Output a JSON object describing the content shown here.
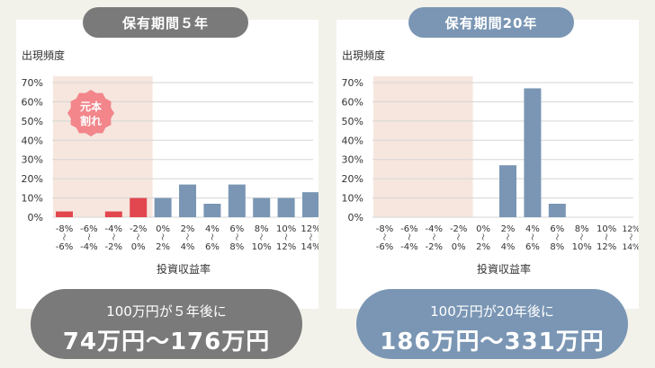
{
  "colors": {
    "gray": "#7a7a7a",
    "blue": "#7a96b4",
    "red": "#e2474f",
    "shade": "#f6e6de",
    "badge": "#f2868b",
    "grid": "#d5d5d5",
    "text": "#333333"
  },
  "left": {
    "title": "保有期間５年",
    "summary_line1": "100万円が５年後に",
    "summary_line2": "74万円〜176万円",
    "badge_line1": "元本",
    "badge_line2": "割れ"
  },
  "right": {
    "title": "保有期間20年",
    "summary_line1": "100万円が20年後に",
    "summary_line2": "186万円〜331万円"
  },
  "chart_data": [
    {
      "type": "bar",
      "ylabel": "出現頻度",
      "xlabel": "投資収益率",
      "ylim": [
        0,
        70
      ],
      "yticks": [
        "0%",
        "10%",
        "20%",
        "30%",
        "40%",
        "50%",
        "60%",
        "70%"
      ],
      "categories": [
        [
          "-8%",
          "-6%"
        ],
        [
          "-6%",
          "-4%"
        ],
        [
          "-4%",
          "-2%"
        ],
        [
          "-2%",
          "0%"
        ],
        [
          "0%",
          "2%"
        ],
        [
          "2%",
          "4%"
        ],
        [
          "4%",
          "6%"
        ],
        [
          "6%",
          "8%"
        ],
        [
          "8%",
          "10%"
        ],
        [
          "10%",
          "12%"
        ],
        [
          "12%",
          "14%"
        ]
      ],
      "values": [
        3,
        0,
        3,
        10,
        10,
        17,
        7,
        17,
        10,
        10,
        13
      ],
      "loss_categories": 4
    },
    {
      "type": "bar",
      "ylabel": "出現頻度",
      "xlabel": "投資収益率",
      "ylim": [
        0,
        70
      ],
      "yticks": [
        "0%",
        "10%",
        "20%",
        "30%",
        "40%",
        "50%",
        "60%",
        "70%"
      ],
      "categories": [
        [
          "-8%",
          "-6%"
        ],
        [
          "-6%",
          "-4%"
        ],
        [
          "-4%",
          "-2%"
        ],
        [
          "-2%",
          "0%"
        ],
        [
          "0%",
          "2%"
        ],
        [
          "2%",
          "4%"
        ],
        [
          "4%",
          "6%"
        ],
        [
          "6%",
          "8%"
        ],
        [
          "8%",
          "10%"
        ],
        [
          "10%",
          "12%"
        ],
        [
          "12%",
          "14%"
        ]
      ],
      "values": [
        0,
        0,
        0,
        0,
        0,
        27,
        67,
        7,
        0,
        0,
        0
      ],
      "loss_categories": 4
    }
  ]
}
